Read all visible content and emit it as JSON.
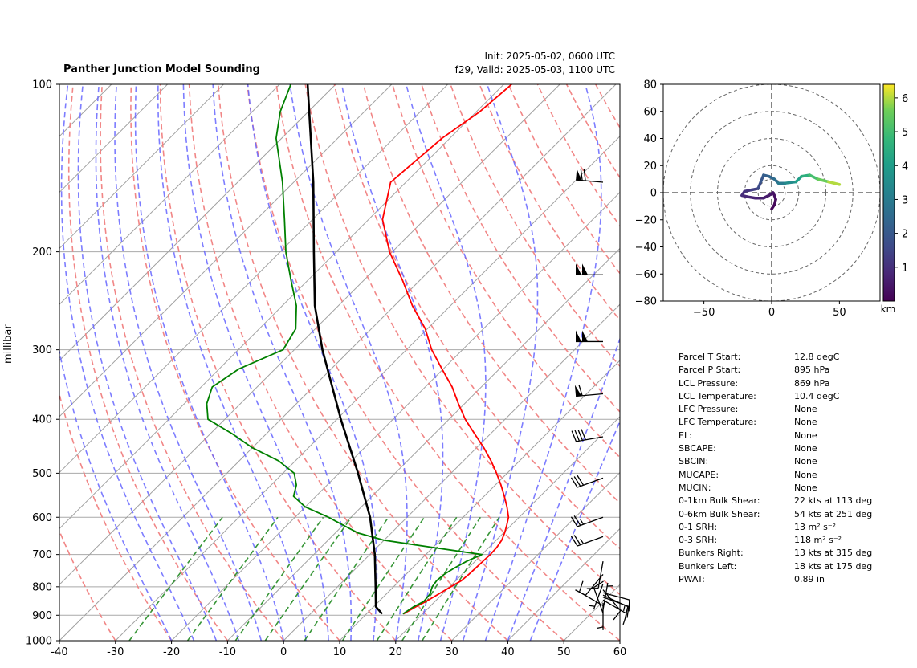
{
  "title": "Panther Junction Model Sounding",
  "init_text": "Init: 2025-05-02, 0600 UTC",
  "valid_text": "f29, Valid: 2025-05-03, 1100 UTC",
  "colors": {
    "temperature": "#ff0000",
    "dewpoint": "#008000",
    "parcel": "#000000",
    "dry_adiabat": "#f08080",
    "moist_adiabat": "#6666ff",
    "mixing_ratio": "#228b22",
    "isotherm": "#a0a0a0",
    "isobar": "#a9a9a9",
    "zero_isotherm_overlap": "#8844cc"
  },
  "chart_data": [
    {
      "type": "line",
      "name": "skew-t",
      "ylabel": "millibar",
      "xlim": [
        -40,
        60
      ],
      "ylim": [
        1000,
        100
      ],
      "y_scale": "log",
      "x_ticks": [
        -40,
        -30,
        -20,
        -10,
        0,
        10,
        20,
        30,
        40,
        50,
        60
      ],
      "y_ticks": [
        100,
        200,
        300,
        400,
        500,
        600,
        700,
        800,
        900,
        1000
      ],
      "grid": true,
      "series": [
        {
          "key": "temperature",
          "pressure": [
            895,
            870,
            850,
            825,
            800,
            780,
            760,
            740,
            720,
            700,
            680,
            660,
            640,
            620,
            600,
            575,
            550,
            525,
            500,
            475,
            450,
            425,
            400,
            375,
            350,
            325,
            300,
            275,
            250,
            225,
            200,
            175,
            150,
            125,
            112,
            100
          ],
          "temp": [
            16.6,
            17.5,
            18.4,
            19.3,
            20.2,
            21.0,
            21.2,
            21.3,
            21.4,
            21.5,
            21.4,
            21.0,
            20.2,
            19.2,
            18.1,
            16.0,
            13.6,
            11.0,
            8.1,
            4.9,
            1.3,
            -2.8,
            -7.1,
            -11.1,
            -15.2,
            -20.2,
            -25.5,
            -30.4,
            -36.8,
            -43.1,
            -50.5,
            -57.5,
            -62.7,
            -61.4,
            -59.4,
            -58.6
          ]
        },
        {
          "key": "dewpoint",
          "pressure": [
            895,
            870,
            850,
            825,
            800,
            780,
            760,
            740,
            720,
            700,
            680,
            660,
            640,
            620,
            600,
            575,
            550,
            525,
            500,
            475,
            450,
            425,
            400,
            375,
            350,
            325,
            300,
            275,
            250,
            225,
            200,
            175,
            150,
            125,
            112,
            100
          ],
          "dewp": [
            16.5,
            17.1,
            18.0,
            17.8,
            16.9,
            16.6,
            16.8,
            17.5,
            18.5,
            20.0,
            10.0,
            0.0,
            -6.0,
            -10.0,
            -14.0,
            -20.0,
            -24.0,
            -25.5,
            -28.0,
            -33.0,
            -40.0,
            -46.0,
            -53.0,
            -56.0,
            -58.0,
            -56.5,
            -52.0,
            -53.5,
            -57.5,
            -63.0,
            -69.0,
            -75.0,
            -82.0,
            -91.0,
            -95.0,
            -98.0
          ]
        },
        {
          "key": "parcel",
          "pressure": [
            895,
            869,
            800,
            700,
            600,
            500,
            400,
            300,
            250,
            200,
            150,
            100
          ],
          "temp": [
            12.8,
            10.4,
            6.8,
            0.9,
            -6.6,
            -16.6,
            -29.3,
            -45.0,
            -54.2,
            -64.0,
            -76.5,
            -95.0
          ]
        }
      ],
      "barbs": [
        {
          "pressure": 892,
          "speed_kt": 8,
          "direction_deg": 340
        },
        {
          "pressure": 880,
          "speed_kt": 5,
          "direction_deg": 10
        },
        {
          "pressure": 865,
          "speed_kt": 12,
          "direction_deg": 300
        },
        {
          "pressure": 855,
          "speed_kt": 4,
          "direction_deg": 180
        },
        {
          "pressure": 845,
          "speed_kt": 10,
          "direction_deg": 120
        },
        {
          "pressure": 835,
          "speed_kt": 12,
          "direction_deg": 110
        },
        {
          "pressure": 828,
          "speed_kt": 15,
          "direction_deg": 115
        },
        {
          "pressure": 820,
          "speed_kt": 12,
          "direction_deg": 105
        },
        {
          "pressure": 810,
          "speed_kt": 8,
          "direction_deg": 140
        },
        {
          "pressure": 790,
          "speed_kt": 5,
          "direction_deg": 200
        },
        {
          "pressure": 760,
          "speed_kt": 8,
          "direction_deg": 220
        },
        {
          "pressure": 720,
          "speed_kt": 8,
          "direction_deg": 190
        },
        {
          "pressure": 650,
          "speed_kt": 25,
          "direction_deg": 250
        },
        {
          "pressure": 600,
          "speed_kt": 25,
          "direction_deg": 250
        },
        {
          "pressure": 510,
          "speed_kt": 30,
          "direction_deg": 250
        },
        {
          "pressure": 430,
          "speed_kt": 40,
          "direction_deg": 260
        },
        {
          "pressure": 360,
          "speed_kt": 60,
          "direction_deg": 265
        },
        {
          "pressure": 290,
          "speed_kt": 100,
          "direction_deg": 270
        },
        {
          "pressure": 220,
          "speed_kt": 100,
          "direction_deg": 270
        },
        {
          "pressure": 150,
          "speed_kt": 70,
          "direction_deg": 275
        }
      ]
    },
    {
      "type": "line",
      "name": "hodograph",
      "xlim": [
        -80,
        80
      ],
      "ylim": [
        -80,
        80
      ],
      "x_ticks": [
        -50,
        0,
        50
      ],
      "y_ticks": [
        -80,
        -60,
        -40,
        -20,
        0,
        20,
        40,
        60,
        80
      ],
      "range_rings": [
        10,
        20,
        40,
        60,
        80
      ],
      "colorbar_label": "km",
      "colorbar_ticks": [
        1,
        2,
        3,
        4,
        5,
        6
      ],
      "colorbar_range": [
        0,
        6.4
      ],
      "points": [
        {
          "u": 0,
          "v": -12,
          "h": 0.05
        },
        {
          "u": 2,
          "v": -9,
          "h": 0.1
        },
        {
          "u": 3,
          "v": -5,
          "h": 0.2
        },
        {
          "u": 2,
          "v": -2,
          "h": 0.3
        },
        {
          "u": 1,
          "v": 0,
          "h": 0.4
        },
        {
          "u": -2,
          "v": -2,
          "h": 0.5
        },
        {
          "u": -6,
          "v": -4,
          "h": 0.6
        },
        {
          "u": -12,
          "v": -4,
          "h": 0.7
        },
        {
          "u": -18,
          "v": -3,
          "h": 0.8
        },
        {
          "u": -22,
          "v": -2,
          "h": 0.9
        },
        {
          "u": -20,
          "v": 1,
          "h": 1.0
        },
        {
          "u": -15,
          "v": 2,
          "h": 1.2
        },
        {
          "u": -10,
          "v": 3,
          "h": 1.5
        },
        {
          "u": -8,
          "v": 8,
          "h": 1.8
        },
        {
          "u": -6,
          "v": 13,
          "h": 2.1
        },
        {
          "u": -2,
          "v": 12,
          "h": 2.3
        },
        {
          "u": 2,
          "v": 10,
          "h": 2.5
        },
        {
          "u": 5,
          "v": 7,
          "h": 2.8
        },
        {
          "u": 10,
          "v": 7,
          "h": 3.2
        },
        {
          "u": 18,
          "v": 8,
          "h": 3.8
        },
        {
          "u": 22,
          "v": 12,
          "h": 4.3
        },
        {
          "u": 28,
          "v": 13,
          "h": 4.8
        },
        {
          "u": 34,
          "v": 10,
          "h": 5.3
        },
        {
          "u": 42,
          "v": 8,
          "h": 5.8
        },
        {
          "u": 50,
          "v": 6,
          "h": 6.2
        }
      ]
    }
  ],
  "parameters": [
    {
      "label": "Parcel T Start:",
      "value": "12.8 degC"
    },
    {
      "label": "Parcel P Start:",
      "value": "895 hPa"
    },
    {
      "label": "LCL Pressure:",
      "value": "869 hPa"
    },
    {
      "label": "LCL Temperature:",
      "value": "10.4 degC"
    },
    {
      "label": "LFC Pressure:",
      "value": "None"
    },
    {
      "label": "LFC Temperature:",
      "value": "None"
    },
    {
      "label": "EL:",
      "value": "None"
    },
    {
      "label": "SBCAPE:",
      "value": "None"
    },
    {
      "label": "SBCIN:",
      "value": "None"
    },
    {
      "label": "MUCAPE:",
      "value": "None"
    },
    {
      "label": "MUCIN:",
      "value": "None"
    },
    {
      "label": "0-1km Bulk Shear:",
      "value": "22 kts at 113 deg"
    },
    {
      "label": "0-6km Bulk Shear:",
      "value": "54 kts at 251 deg"
    },
    {
      "label": "0-1 SRH:",
      "value": "13 m² s⁻²"
    },
    {
      "label": "0-3 SRH:",
      "value": "118 m² s⁻²"
    },
    {
      "label": "Bunkers Right:",
      "value": "13 kts at 315 deg"
    },
    {
      "label": "Bunkers Left:",
      "value": "18 kts at 175 deg"
    },
    {
      "label": "PWAT:",
      "value": "0.89 in"
    }
  ]
}
